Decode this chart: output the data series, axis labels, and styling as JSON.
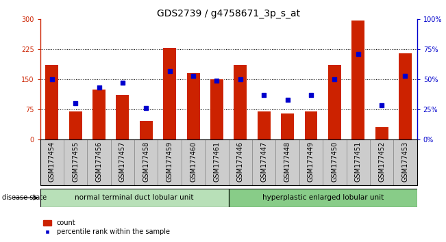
{
  "title": "GDS2739 / g4758671_3p_s_at",
  "samples": [
    "GSM177454",
    "GSM177455",
    "GSM177456",
    "GSM177457",
    "GSM177458",
    "GSM177459",
    "GSM177460",
    "GSM177461",
    "GSM177446",
    "GSM177447",
    "GSM177448",
    "GSM177449",
    "GSM177450",
    "GSM177451",
    "GSM177452",
    "GSM177453"
  ],
  "counts": [
    185,
    70,
    125,
    110,
    45,
    228,
    165,
    150,
    185,
    70,
    65,
    70,
    185,
    297,
    30,
    215
  ],
  "percentiles": [
    50,
    30,
    43,
    47,
    26,
    57,
    53,
    49,
    50,
    37,
    33,
    37,
    50,
    71,
    28,
    53
  ],
  "group1_label": "normal terminal duct lobular unit",
  "group2_label": "hyperplastic enlarged lobular unit",
  "group1_count": 8,
  "group2_count": 8,
  "bar_color": "#cc2200",
  "dot_color": "#0000cc",
  "ylim_left": [
    0,
    300
  ],
  "ylim_right": [
    0,
    100
  ],
  "yticks_left": [
    0,
    75,
    150,
    225,
    300
  ],
  "ytick_labels_left": [
    "0",
    "75",
    "150",
    "225",
    "300"
  ],
  "yticks_right": [
    0,
    25,
    50,
    75,
    100
  ],
  "ytick_labels_right": [
    "0%",
    "25%",
    "50%",
    "75%",
    "100%"
  ],
  "group1_color": "#b8e0b8",
  "group2_color": "#88cc88",
  "title_fontsize": 10,
  "tick_fontsize": 7,
  "label_fontsize": 7,
  "bar_width": 0.55,
  "disease_state_text": "disease state",
  "legend_count": "count",
  "legend_pct": "percentile rank within the sample"
}
